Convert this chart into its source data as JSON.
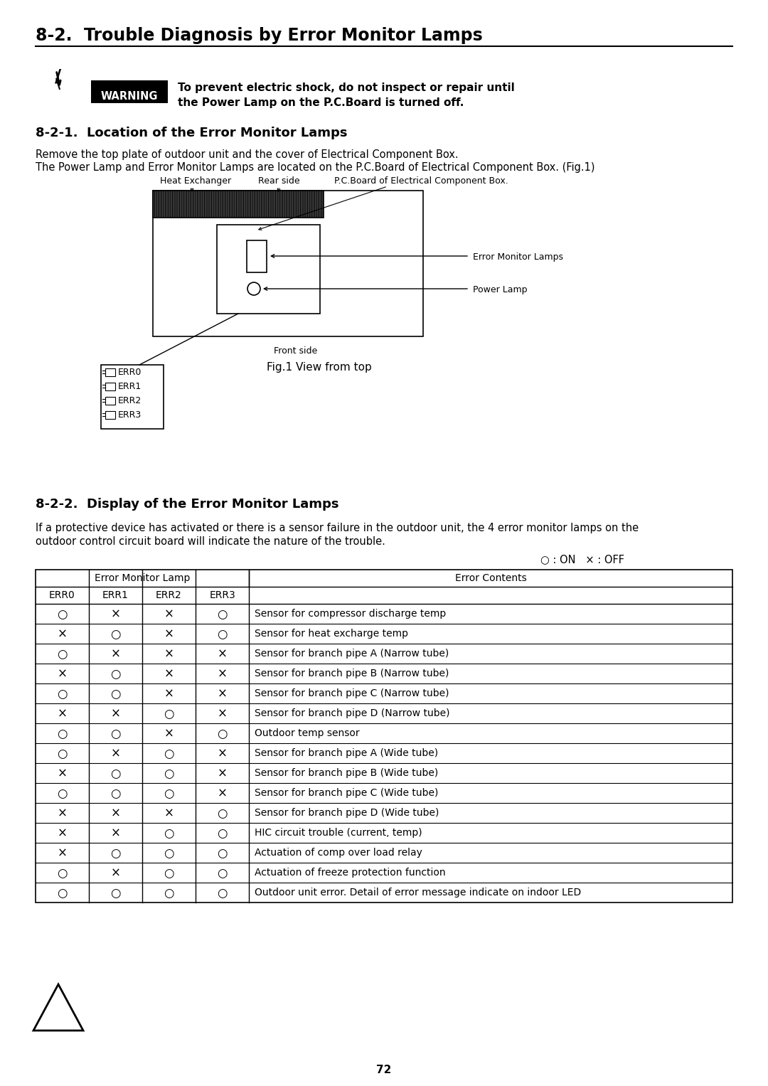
{
  "title": "8-2.  Trouble Diagnosis by Error Monitor Lamps",
  "section1_title": "8-2-1.  Location of the Error Monitor Lamps",
  "section2_title": "8-2-2.  Display of the Error Monitor Lamps",
  "warning_text1": "To prevent electric shock, do not inspect or repair until",
  "warning_text2": "the Power Lamp on the P.C.Board is turned off.",
  "desc1": "Remove the top plate of outdoor unit and the cover of Electrical Component Box.",
  "desc2": "The Power Lamp and Error Monitor Lamps are located on the P.C.Board of Electrical Component Box. (Fig.1)",
  "desc3a": "If a protective device has activated or there is a sensor failure in the outdoor unit, the 4 error monitor lamps on the",
  "desc3b": "outdoor control circuit board will indicate the nature of the trouble.",
  "legend_text": "○ : ON   × : OFF",
  "fig_caption": "Fig.1 View from top",
  "label_heat_exchanger": "Heat Exchanger",
  "label_rear_side": "Rear side",
  "label_pcboard": "P.C.Board of Electrical Component Box.",
  "label_front_side": "Front side",
  "label_error_monitor": "Error Monitor Lamps",
  "label_power_lamp": "Power Lamp",
  "err_labels": [
    "ERR0",
    "ERR1",
    "ERR2",
    "ERR3"
  ],
  "table_header1": "Error Monitor Lamp",
  "table_header2": "Error Contents",
  "col_headers": [
    "ERR0",
    "ERR1",
    "ERR2",
    "ERR3"
  ],
  "table_data": [
    [
      "O",
      "X",
      "X",
      "O",
      "Sensor for compressor discharge temp"
    ],
    [
      "X",
      "O",
      "X",
      "O",
      "Sensor for heat excharge temp"
    ],
    [
      "O",
      "X",
      "X",
      "X",
      "Sensor for branch pipe A (Narrow tube)"
    ],
    [
      "X",
      "O",
      "X",
      "X",
      "Sensor for branch pipe B (Narrow tube)"
    ],
    [
      "O",
      "O",
      "X",
      "X",
      "Sensor for branch pipe C (Narrow tube)"
    ],
    [
      "X",
      "X",
      "O",
      "X",
      "Sensor for branch pipe D (Narrow tube)"
    ],
    [
      "O",
      "O",
      "X",
      "O",
      "Outdoor temp sensor"
    ],
    [
      "O",
      "X",
      "O",
      "X",
      "Sensor for branch pipe A (Wide tube)"
    ],
    [
      "X",
      "O",
      "O",
      "X",
      "Sensor for branch pipe B (Wide tube)"
    ],
    [
      "O",
      "O",
      "O",
      "X",
      "Sensor for branch pipe C (Wide tube)"
    ],
    [
      "X",
      "X",
      "X",
      "O",
      "Sensor for branch pipe D (Wide tube)"
    ],
    [
      "X",
      "X",
      "O",
      "O",
      "HIC circuit trouble (current, temp)"
    ],
    [
      "X",
      "O",
      "O",
      "O",
      "Actuation of comp over load relay"
    ],
    [
      "O",
      "X",
      "O",
      "O",
      "Actuation of freeze protection function"
    ],
    [
      "O",
      "O",
      "O",
      "O",
      "Outdoor unit error. Detail of error message indicate on indoor LED"
    ]
  ],
  "page_number": "72",
  "bg_color": "#ffffff"
}
